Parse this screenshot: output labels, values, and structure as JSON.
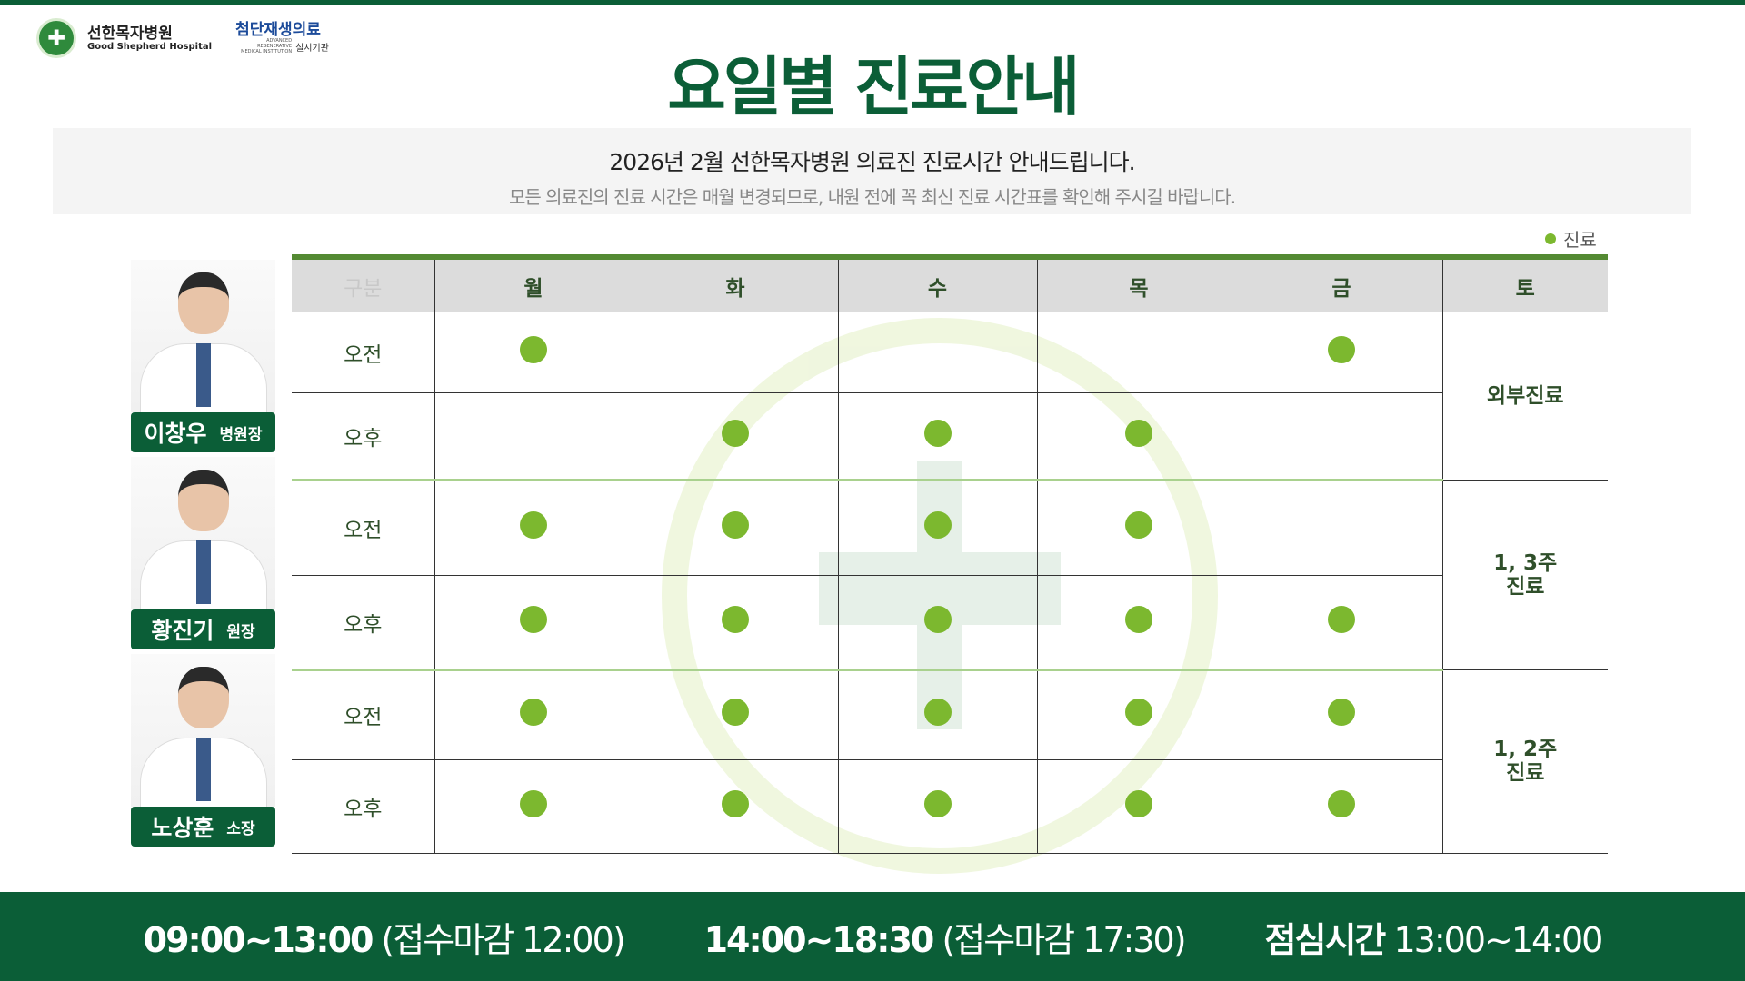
{
  "header": {
    "hospital_name": "선한목자병원",
    "hospital_name_en": "Good Shepherd Hospital",
    "partner": "첨단재생의료",
    "partner_sub": "실시기관",
    "partner_en": "ADVANCED REGENERATIVE MEDICAL INSTITUTION",
    "title": "요일별 진료안내"
  },
  "notice": {
    "line1": "2026년 2월 선한목자병원 의료진 진료시간 안내드립니다.",
    "line2": "모든 의료진의 진료 시간은 매월 변경되므로, 내원 전에 꼭 최신 진료 시간표를 확인해 주시길  바랍니다."
  },
  "legend": {
    "label": "진료",
    "color": "#7cb82f"
  },
  "table": {
    "headers": [
      "구분",
      "월",
      "화",
      "수",
      "목",
      "금",
      "토"
    ],
    "doctors": [
      {
        "name": "이창우",
        "rank": "병원장",
        "saturday": "외부진료",
        "rows": [
          {
            "label": "오전",
            "days": [
              true,
              false,
              false,
              false,
              true
            ]
          },
          {
            "label": "오후",
            "days": [
              false,
              true,
              true,
              true,
              false
            ]
          }
        ]
      },
      {
        "name": "황진기",
        "rank": "원장",
        "saturday": "1, 3주\n진료",
        "rows": [
          {
            "label": "오전",
            "days": [
              true,
              true,
              true,
              true,
              false
            ]
          },
          {
            "label": "오후",
            "days": [
              true,
              true,
              true,
              true,
              true
            ]
          }
        ]
      },
      {
        "name": "노상훈",
        "rank": "소장",
        "saturday": "1, 2주\n진료",
        "rows": [
          {
            "label": "오전",
            "days": [
              true,
              true,
              true,
              true,
              true
            ]
          },
          {
            "label": "오후",
            "days": [
              true,
              true,
              true,
              true,
              true
            ]
          }
        ]
      }
    ]
  },
  "footer": {
    "am_time": "09:00~13:00",
    "am_note": "(접수마감 12:00)",
    "pm_time": "14:00~18:30",
    "pm_note": "(접수마감 17:30)",
    "lunch_label": "점심시간",
    "lunch_time": "13:00~14:00"
  },
  "colors": {
    "brand": "#0b5e37",
    "accent": "#7cb82f"
  }
}
